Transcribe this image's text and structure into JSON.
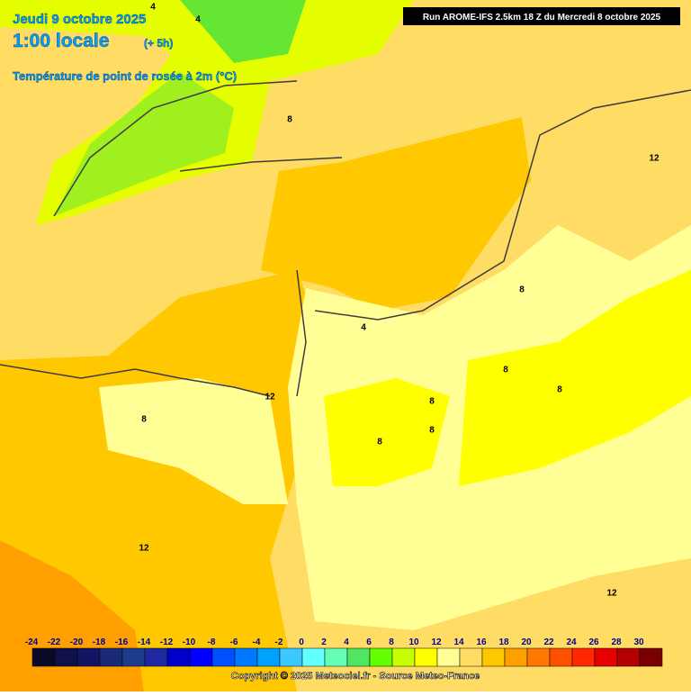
{
  "header": {
    "date": "Jeudi 9 octobre 2025",
    "time": "1:00 locale",
    "offset": "(+ 5h)",
    "title": "Température de point de rosée à 2m (°C)"
  },
  "run_info": "Run AROME-IFS 2.5km 18 Z du Mercredi 8 octobre 2025",
  "contour_labels": [
    "4",
    "4",
    "8",
    "12",
    "8",
    "4",
    "12",
    "8",
    "8",
    "8",
    "8",
    "8",
    "8",
    "12",
    "12"
  ],
  "colorbar": {
    "ticks": [
      -24,
      -22,
      -20,
      -18,
      -16,
      -14,
      -12,
      -10,
      -8,
      -6,
      -4,
      -2,
      0,
      2,
      4,
      6,
      8,
      10,
      12,
      14,
      16,
      18,
      20,
      22,
      24,
      26,
      28,
      30
    ],
    "colors": [
      "#0a0a28",
      "#10104a",
      "#141464",
      "#1a2a78",
      "#1e3c8c",
      "#1e28a0",
      "#0000c8",
      "#0000ff",
      "#0050ff",
      "#0078ff",
      "#00a0ff",
      "#3cc8ff",
      "#64ffff",
      "#64ffb4",
      "#50e664",
      "#64ff00",
      "#c8ff00",
      "#ffff00",
      "#ffff96",
      "#ffdc64",
      "#ffc800",
      "#ffa000",
      "#ff7800",
      "#ff5000",
      "#ff2800",
      "#e60000",
      "#b40000",
      "#780000"
    ]
  },
  "copyright": "Copyright © 2025 Meteociel.fr - Source Meteo-France"
}
